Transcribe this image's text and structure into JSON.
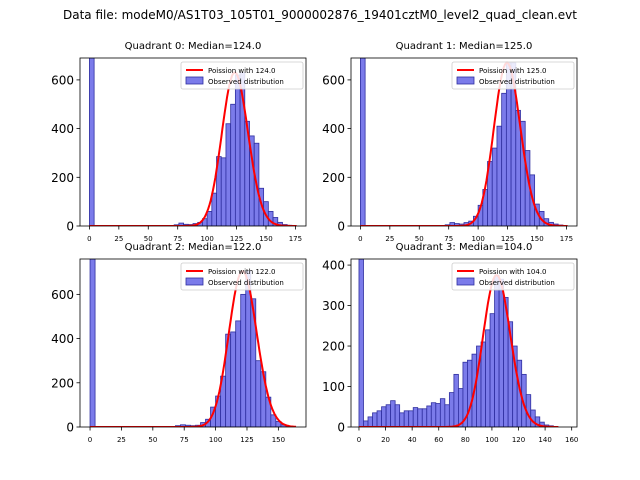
{
  "title": "Data file: modeM0/AS1T03_105T01_9000002876_19401cztM0_level2_quad_clean.evt",
  "colors": {
    "bar_fill": "#7b7bea",
    "bar_edge": "#2f2fa0",
    "curve": "#ff0000"
  },
  "chart_data": [
    {
      "type": "bar",
      "title": "Quadrant 0: Median=124.0",
      "xlim": [
        -8,
        184
      ],
      "ylim": [
        0,
        690
      ],
      "xticks": [
        0,
        25,
        50,
        75,
        100,
        125,
        150,
        175
      ],
      "yticks": [
        0,
        200,
        400,
        600
      ],
      "bin_width": 4,
      "bins": [
        [
          0,
          690
        ],
        [
          72,
          5
        ],
        [
          76,
          12
        ],
        [
          80,
          7
        ],
        [
          84,
          6
        ],
        [
          88,
          10
        ],
        [
          92,
          15
        ],
        [
          96,
          30
        ],
        [
          100,
          60
        ],
        [
          104,
          135
        ],
        [
          108,
          285
        ],
        [
          112,
          280
        ],
        [
          116,
          420
        ],
        [
          120,
          500
        ],
        [
          124,
          620
        ],
        [
          128,
          630
        ],
        [
          132,
          430
        ],
        [
          136,
          370
        ],
        [
          140,
          340
        ],
        [
          144,
          155
        ],
        [
          148,
          100
        ],
        [
          152,
          60
        ],
        [
          156,
          35
        ],
        [
          160,
          15
        ],
        [
          164,
          6
        ],
        [
          168,
          3
        ]
      ],
      "curve": {
        "mean": 124.0,
        "x_start": 0,
        "x_end": 176
      },
      "legend": [
        "Poission with 124.0",
        "Observed distribution"
      ]
    },
    {
      "type": "bar",
      "title": "Quadrant 1: Median=125.0",
      "xlim": [
        -8,
        184
      ],
      "ylim": [
        0,
        690
      ],
      "xticks": [
        0,
        25,
        50,
        75,
        100,
        125,
        150,
        175
      ],
      "yticks": [
        0,
        200,
        400,
        600
      ],
      "bin_width": 4,
      "bins": [
        [
          0,
          690
        ],
        [
          72,
          5
        ],
        [
          76,
          14
        ],
        [
          80,
          10
        ],
        [
          84,
          8
        ],
        [
          88,
          14
        ],
        [
          92,
          20
        ],
        [
          96,
          40
        ],
        [
          100,
          85
        ],
        [
          104,
          150
        ],
        [
          108,
          265
        ],
        [
          112,
          320
        ],
        [
          116,
          410
        ],
        [
          120,
          545
        ],
        [
          124,
          670
        ],
        [
          128,
          670
        ],
        [
          132,
          475
        ],
        [
          136,
          430
        ],
        [
          140,
          310
        ],
        [
          144,
          210
        ],
        [
          148,
          90
        ],
        [
          152,
          60
        ],
        [
          156,
          30
        ],
        [
          160,
          15
        ],
        [
          164,
          8
        ],
        [
          168,
          4
        ]
      ],
      "curve": {
        "mean": 125.0,
        "x_start": 0,
        "x_end": 176
      },
      "legend": [
        "Poission with 125.0",
        "Observed distribution"
      ]
    },
    {
      "type": "bar",
      "title": "Quadrant 2: Median=122.0",
      "xlim": [
        -8,
        172
      ],
      "ylim": [
        0,
        760
      ],
      "xticks": [
        0,
        25,
        50,
        75,
        100,
        125,
        150
      ],
      "yticks": [
        0,
        200,
        400,
        600
      ],
      "bin_width": 4,
      "bins": [
        [
          0,
          760
        ],
        [
          68,
          6
        ],
        [
          72,
          10
        ],
        [
          76,
          8
        ],
        [
          80,
          6
        ],
        [
          84,
          8
        ],
        [
          88,
          20
        ],
        [
          92,
          35
        ],
        [
          96,
          90
        ],
        [
          100,
          140
        ],
        [
          104,
          230
        ],
        [
          108,
          420
        ],
        [
          112,
          430
        ],
        [
          116,
          480
        ],
        [
          120,
          600
        ],
        [
          124,
          705
        ],
        [
          128,
          580
        ],
        [
          132,
          300
        ],
        [
          136,
          250
        ],
        [
          140,
          135
        ],
        [
          144,
          55
        ],
        [
          148,
          25
        ],
        [
          152,
          10
        ],
        [
          156,
          4
        ]
      ],
      "curve": {
        "mean": 122.0,
        "x_start": 0,
        "x_end": 164
      },
      "legend": [
        "Poission with 122.0",
        "Observed distribution"
      ]
    },
    {
      "type": "bar",
      "title": "Quadrant 3: Median=104.0",
      "xlim": [
        -6,
        164
      ],
      "ylim": [
        0,
        415
      ],
      "xticks": [
        0,
        20,
        40,
        60,
        80,
        100,
        120,
        140,
        160
      ],
      "yticks": [
        0,
        100,
        200,
        300,
        400
      ],
      "bin_width": 3.4,
      "bins": [
        [
          0,
          415
        ],
        [
          3.4,
          15
        ],
        [
          6.8,
          25
        ],
        [
          10.2,
          35
        ],
        [
          13.6,
          40
        ],
        [
          17,
          50
        ],
        [
          20.4,
          55
        ],
        [
          23.8,
          65
        ],
        [
          27.2,
          55
        ],
        [
          30.6,
          35
        ],
        [
          34,
          40
        ],
        [
          37.4,
          40
        ],
        [
          40.8,
          48
        ],
        [
          44.2,
          45
        ],
        [
          47.6,
          45
        ],
        [
          51,
          52
        ],
        [
          54.4,
          60
        ],
        [
          57.8,
          58
        ],
        [
          61.2,
          70
        ],
        [
          64.6,
          55
        ],
        [
          68,
          85
        ],
        [
          71.4,
          130
        ],
        [
          74.8,
          95
        ],
        [
          78.2,
          160
        ],
        [
          81.6,
          165
        ],
        [
          85,
          180
        ],
        [
          88.4,
          200
        ],
        [
          91.8,
          210
        ],
        [
          95.2,
          240
        ],
        [
          98.6,
          280
        ],
        [
          102,
          375
        ],
        [
          105.4,
          365
        ],
        [
          108.8,
          320
        ],
        [
          112.2,
          260
        ],
        [
          115.6,
          200
        ],
        [
          119,
          165
        ],
        [
          122.4,
          130
        ],
        [
          125.8,
          80
        ],
        [
          129.2,
          42
        ],
        [
          132.6,
          25
        ],
        [
          136,
          12
        ],
        [
          139.4,
          5
        ],
        [
          142.8,
          3
        ]
      ],
      "curve": {
        "mean": 104.0,
        "x_start": 0,
        "x_end": 150
      },
      "legend": [
        "Poission with 104.0",
        "Observed distribution"
      ]
    }
  ]
}
